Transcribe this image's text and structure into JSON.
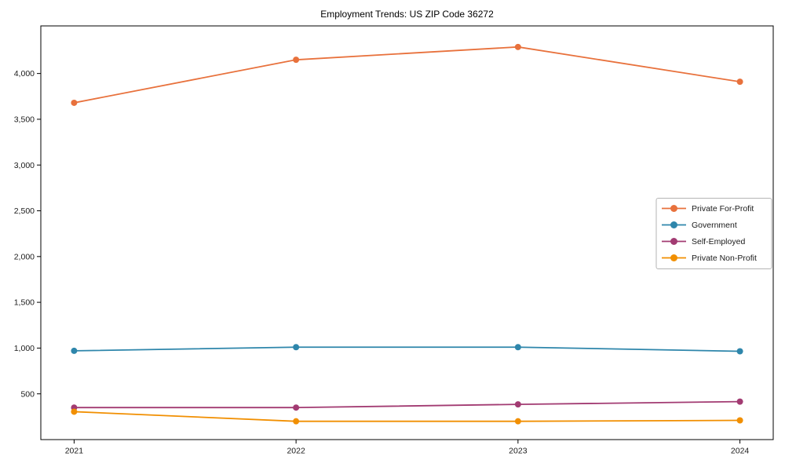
{
  "page": {
    "title": "Employment Trends: US ZIP Code 36272"
  },
  "chart_data": {
    "type": "line",
    "title": "Employment Trends: US ZIP Code 36272",
    "xlabel": "",
    "ylabel": "",
    "categories": [
      "2021",
      "2022",
      "2023",
      "2024"
    ],
    "x_values": [
      2021,
      2022,
      2023,
      2024
    ],
    "ylim": [
      0,
      4520
    ],
    "xlim_padding_years": 0.15,
    "y_ticks": [
      500,
      1000,
      1500,
      2000,
      2500,
      3000,
      3500,
      4000
    ],
    "y_tick_labels": [
      "500",
      "1,000",
      "1,500",
      "2,000",
      "2,500",
      "3,000",
      "3,500",
      "4,000"
    ],
    "grid": false,
    "legend_position": "center right",
    "axis_color": "#000000",
    "series": [
      {
        "name": "Private For-Profit",
        "color": "#E8713C",
        "values": [
          3680,
          4150,
          4290,
          3910
        ]
      },
      {
        "name": "Government",
        "color": "#2E86AB",
        "values": [
          970,
          1010,
          1010,
          965
        ]
      },
      {
        "name": "Self-Employed",
        "color": "#A23B72",
        "values": [
          350,
          350,
          385,
          415
        ]
      },
      {
        "name": "Private Non-Profit",
        "color": "#F18F01",
        "values": [
          305,
          200,
          200,
          210
        ]
      }
    ]
  }
}
